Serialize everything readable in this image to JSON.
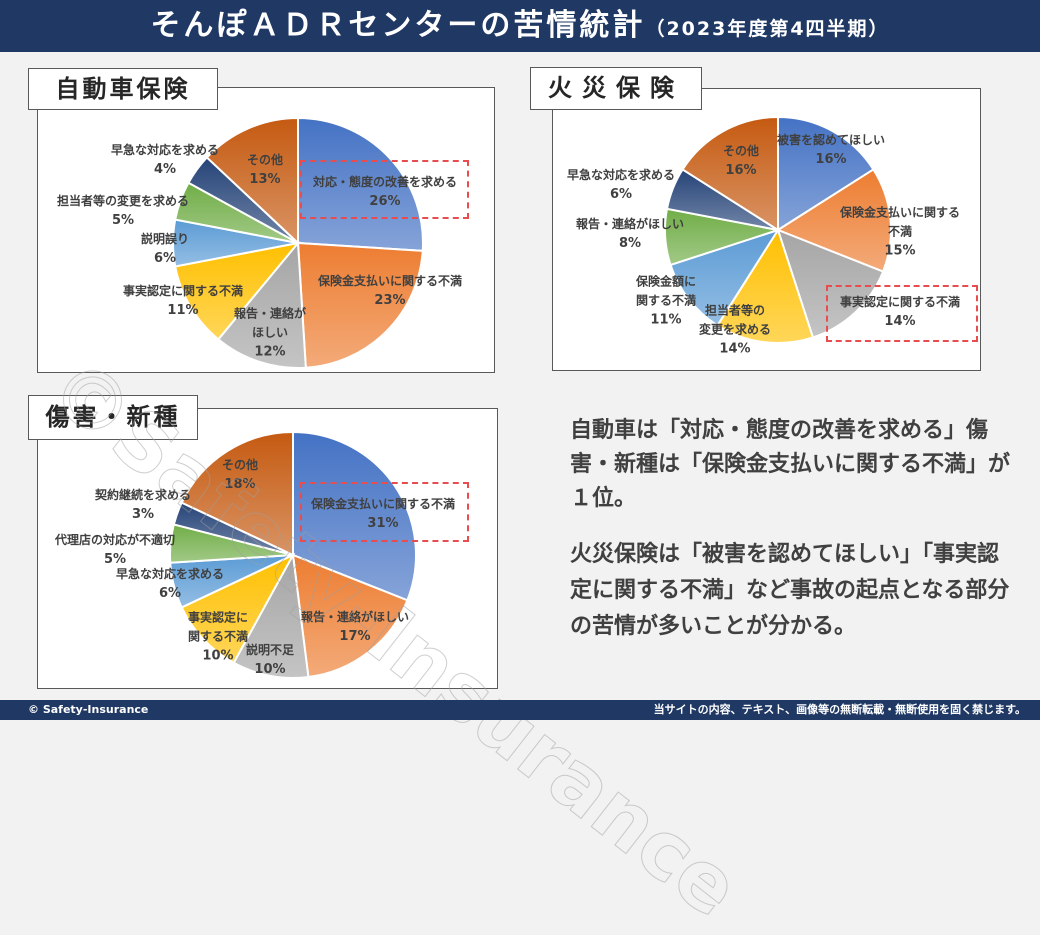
{
  "header": {
    "title": "そんぽＡＤＲセンターの苦情統計",
    "subtitle": "（2023年度第4四半期）"
  },
  "footer": {
    "copyright": "© Safety-Insurance",
    "notice": "当サイトの内容、テキスト、画像等の無断転載・無断使用を固く禁じます。"
  },
  "watermark": "©Safety-Insurance",
  "colors": [
    "#4472c4",
    "#ed7d31",
    "#a5a5a5",
    "#ffc000",
    "#5b9bd5",
    "#70ad47",
    "#264478",
    "#c55a11"
  ],
  "chart_data": [
    {
      "type": "pie",
      "title": "自動車保険",
      "labels": [
        "対応・態度の改善を求める",
        "保険金支払いに関する不満",
        "報告・連絡が\nほしい",
        "事実認定に関する不満",
        "説明誤り",
        "担当者等の変更を求める",
        "早急な対応を求める",
        "その他"
      ],
      "values": [
        26,
        23,
        12,
        11,
        6,
        5,
        4,
        13
      ],
      "pct": [
        "26%",
        "23%",
        "12%",
        "11%",
        "6%",
        "5%",
        "4%",
        "13%"
      ],
      "highlight": 0
    },
    {
      "type": "pie",
      "title": "火災保険",
      "labels": [
        "被害を認めてほしい",
        "保険金支払いに関する\n不満",
        "事実認定に関する不満",
        "担当者等の\n変更を求める",
        "保険金額に\n関する不満",
        "報告・連絡がほしい",
        "早急な対応を求める",
        "その他"
      ],
      "values": [
        16,
        15,
        14,
        14,
        11,
        8,
        6,
        16
      ],
      "pct": [
        "16%",
        "15%",
        "14%",
        "14%",
        "11%",
        "8%",
        "6%",
        "16%"
      ],
      "highlight": 2
    },
    {
      "type": "pie",
      "title": "傷害・新種",
      "labels": [
        "保険金支払いに関する不満",
        "報告・連絡がほしい",
        "説明不足",
        "事実認定に\n関する不満",
        "早急な対応を求める",
        "代理店の対応が不適切",
        "契約継続を求める",
        "その他"
      ],
      "values": [
        31,
        17,
        10,
        10,
        6,
        5,
        3,
        18
      ],
      "pct": [
        "31%",
        "17%",
        "10%",
        "10%",
        "6%",
        "5%",
        "3%",
        "18%"
      ],
      "highlight": 0
    }
  ],
  "summary": {
    "p1": "自動車は「対応・態度の改善を求める」傷害・新種は「保険金支払いに関する不満」が１位。",
    "p2": "火災保険は「被害を認めてほしい」「事実認定に関する不満」など事故の起点となる部分の苦情が多いことが分かる。"
  }
}
